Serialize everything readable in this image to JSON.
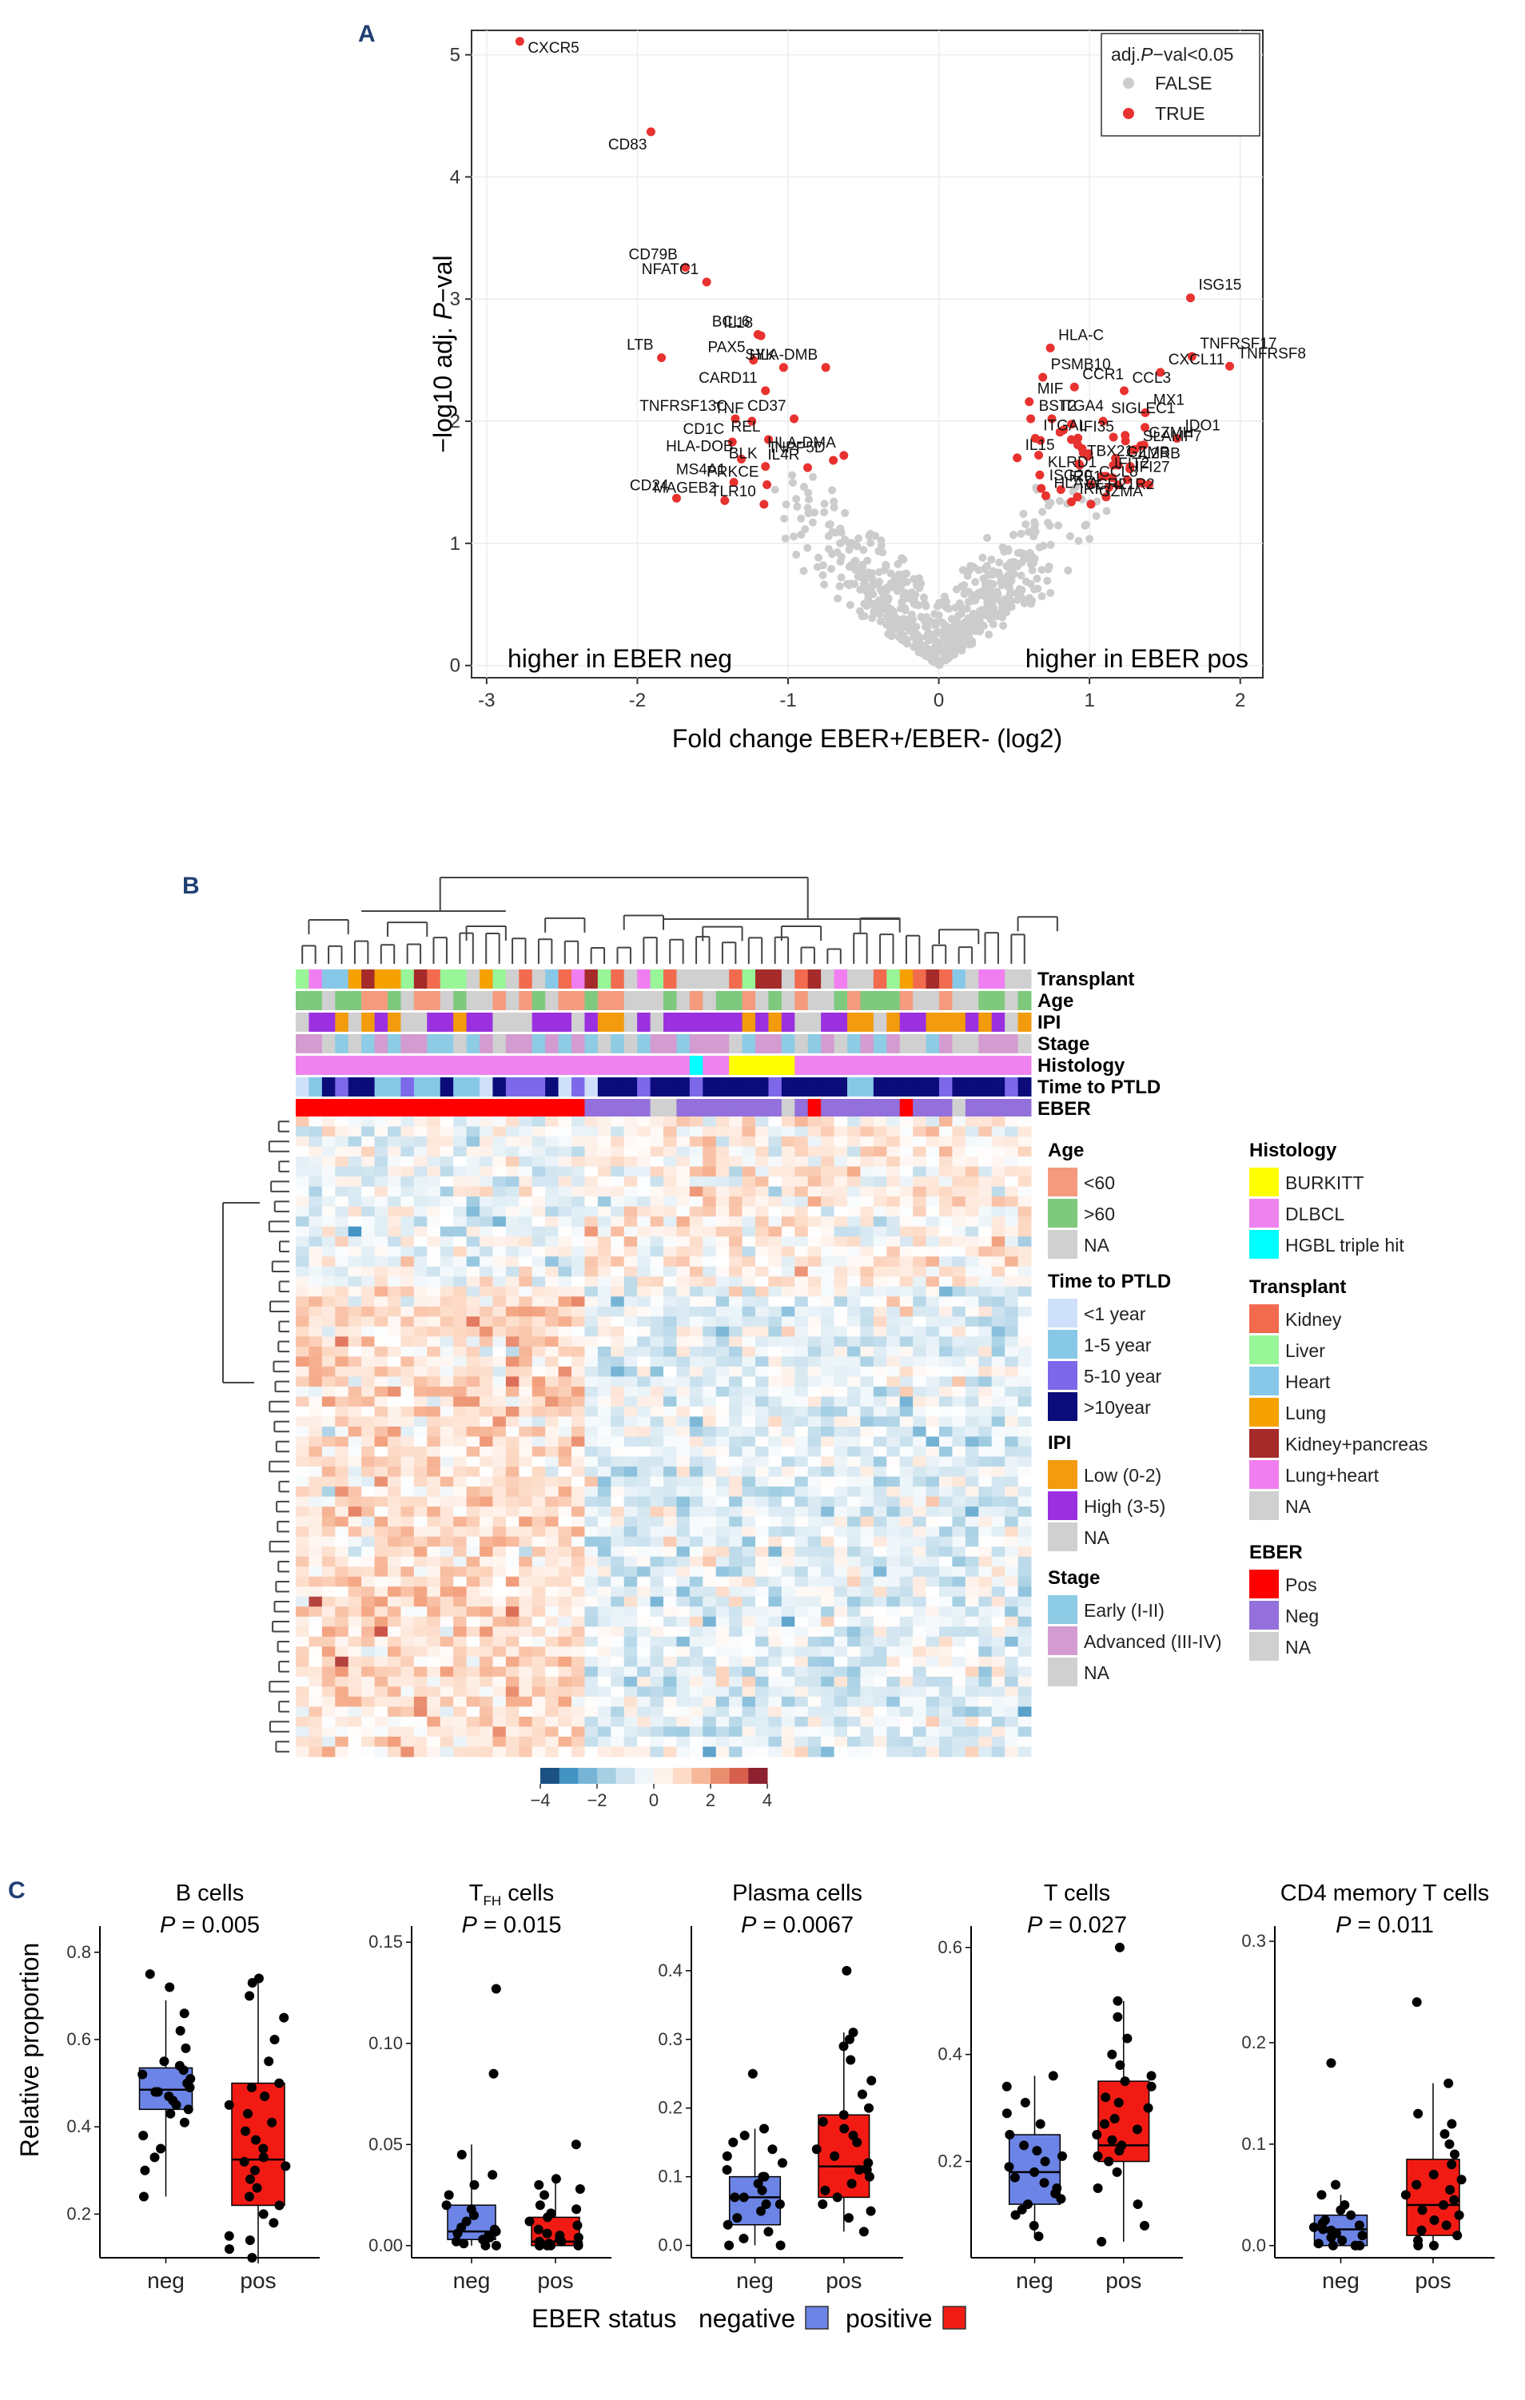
{
  "panel_labels": {
    "a": "A",
    "b": "B",
    "c": "C"
  },
  "colors": {
    "sig": "#e8322f",
    "nonsig": "#cccccc",
    "neg_box": "#6b84e6",
    "pos_box": "#f21b14",
    "dendro": "#444444"
  },
  "chart_data": [
    {
      "id": "volcano",
      "type": "scatter",
      "title": "",
      "xlabel": "Fold change EBER+/EBER- (log2)",
      "ylabel_prefix": "−log10 adj.",
      "ylabel_p": "P",
      "ylabel_suffix": "−val",
      "xlim": [
        -3.1,
        2.15
      ],
      "ylim": [
        -0.1,
        5.2
      ],
      "xticks": [
        -3,
        -2,
        -1,
        0,
        1,
        2
      ],
      "yticks": [
        0,
        1,
        2,
        3,
        4,
        5
      ],
      "grid": true,
      "legend_title_prefix": "adj.",
      "legend_title_p": "P",
      "legend_title_suffix": "−val<0.05",
      "legend": [
        "FALSE",
        "TRUE"
      ],
      "legend_position": "top-right",
      "annotation_left": "higher in EBER neg",
      "annotation_right": "higher in EBER pos",
      "labeled_points": [
        {
          "gene": "CXCR5",
          "x": -2.78,
          "y": 5.11
        },
        {
          "gene": "CD83",
          "x": -1.91,
          "y": 4.37
        },
        {
          "gene": "CD79B",
          "x": -1.68,
          "y": 3.26
        },
        {
          "gene": "NFATC1",
          "x": -1.54,
          "y": 3.14
        },
        {
          "gene": "BCL6",
          "x": -1.2,
          "y": 2.71
        },
        {
          "gene": "IL18",
          "x": -1.18,
          "y": 2.7
        },
        {
          "gene": "PAX5",
          "x": -1.23,
          "y": 2.5
        },
        {
          "gene": "SYK",
          "x": -1.03,
          "y": 2.44
        },
        {
          "gene": "HLA-DMB",
          "x": -0.75,
          "y": 2.44
        },
        {
          "gene": "LTB",
          "x": -1.84,
          "y": 2.52
        },
        {
          "gene": "CARD11",
          "x": -1.15,
          "y": 2.25
        },
        {
          "gene": "TNFRSF13C",
          "x": -1.35,
          "y": 2.02
        },
        {
          "gene": "TNF",
          "x": -1.24,
          "y": 2.0
        },
        {
          "gene": "CD37",
          "x": -0.96,
          "y": 2.02
        },
        {
          "gene": "CD1C",
          "x": -1.37,
          "y": 1.83
        },
        {
          "gene": "REL",
          "x": -1.13,
          "y": 1.85
        },
        {
          "gene": "HLA-DMA",
          "x": -0.63,
          "y": 1.72
        },
        {
          "gene": "HLA-DOB",
          "x": -1.31,
          "y": 1.69
        },
        {
          "gene": "BLK",
          "x": -1.15,
          "y": 1.63
        },
        {
          "gene": "IL4R",
          "x": -0.87,
          "y": 1.62
        },
        {
          "gene": "INPP5D",
          "x": -0.7,
          "y": 1.68
        },
        {
          "gene": "MS4A1",
          "x": -1.36,
          "y": 1.5
        },
        {
          "gene": "PRKCE",
          "x": -1.14,
          "y": 1.48
        },
        {
          "gene": "CD24",
          "x": -1.74,
          "y": 1.37
        },
        {
          "gene": "MAGEB2",
          "x": -1.42,
          "y": 1.35
        },
        {
          "gene": "TLR10",
          "x": -1.16,
          "y": 1.32
        },
        {
          "gene": "ISG15",
          "x": 1.67,
          "y": 3.01
        },
        {
          "gene": "HLA-C",
          "x": 0.74,
          "y": 2.6
        },
        {
          "gene": "PSMB10",
          "x": 0.69,
          "y": 2.36
        },
        {
          "gene": "TNFRSF17",
          "x": 1.68,
          "y": 2.53
        },
        {
          "gene": "CXCL11",
          "x": 1.47,
          "y": 2.4
        },
        {
          "gene": "TNFRSF8",
          "x": 1.93,
          "y": 2.45
        },
        {
          "gene": "CCR1",
          "x": 0.9,
          "y": 2.28
        },
        {
          "gene": "CCL3",
          "x": 1.23,
          "y": 2.25
        },
        {
          "gene": "MIF",
          "x": 0.6,
          "y": 2.16
        },
        {
          "gene": "MX1",
          "x": 1.37,
          "y": 2.07
        },
        {
          "gene": "BST2",
          "x": 0.61,
          "y": 2.02
        },
        {
          "gene": "ITGA4",
          "x": 0.75,
          "y": 2.02
        },
        {
          "gene": "SIGLEC1",
          "x": 1.09,
          "y": 2.0
        },
        {
          "gene": "IDO1",
          "x": 1.58,
          "y": 1.86
        },
        {
          "gene": "ITGAL",
          "x": 0.64,
          "y": 1.86
        },
        {
          "gene": "IFI35",
          "x": 0.88,
          "y": 1.85
        },
        {
          "gene": "SLAMF7",
          "x": 1.3,
          "y": 1.77
        },
        {
          "gene": "IL15",
          "x": 0.52,
          "y": 1.7
        },
        {
          "gene": "TBX21",
          "x": 0.93,
          "y": 1.65
        },
        {
          "gene": "GZMH",
          "x": 1.34,
          "y": 1.8
        },
        {
          "gene": "KLRD1",
          "x": 0.67,
          "y": 1.56
        },
        {
          "gene": "ISG20",
          "x": 0.68,
          "y": 1.45
        },
        {
          "gene": "IFIT2",
          "x": 1.11,
          "y": 1.55
        },
        {
          "gene": "GZMB",
          "x": 1.19,
          "y": 1.64
        },
        {
          "gene": "IL2RB",
          "x": 1.27,
          "y": 1.63
        },
        {
          "gene": "HLA-A",
          "x": 0.71,
          "y": 1.39
        },
        {
          "gene": "IRF1",
          "x": 0.81,
          "y": 1.44
        },
        {
          "gene": "CCR2",
          "x": 0.92,
          "y": 1.38
        },
        {
          "gene": "IL1R2",
          "x": 1.11,
          "y": 1.38
        },
        {
          "gene": "CCL8",
          "x": 1.01,
          "y": 1.48
        },
        {
          "gene": "IRF7",
          "x": 0.88,
          "y": 1.34
        },
        {
          "gene": "GZMA",
          "x": 1.01,
          "y": 1.32
        },
        {
          "gene": "IFI27",
          "x": 1.25,
          "y": 1.52
        }
      ]
    },
    {
      "id": "heatmap",
      "type": "heatmap",
      "annotation_rows": [
        "Transplant",
        "Age",
        "IPI",
        "Stage",
        "Histology",
        "Time to PTLD",
        "EBER"
      ],
      "colorbar_ticks": [
        -4,
        -2,
        0,
        2,
        4
      ],
      "n_samples": 56,
      "n_genes": 64,
      "legend_groups": [
        {
          "title": "Age",
          "items": [
            {
              "label": "<60",
              "color": "#f59a7c"
            },
            {
              "label": ">60",
              "color": "#7ec97e"
            },
            {
              "label": "NA",
              "color": "#d0d0d0"
            }
          ]
        },
        {
          "title": "Time to PTLD",
          "items": [
            {
              "label": "<1 year",
              "color": "#cfe0fa"
            },
            {
              "label": "1-5 year",
              "color": "#86c8e6"
            },
            {
              "label": "5-10 year",
              "color": "#7d68ea"
            },
            {
              "label": ">10year",
              "color": "#0b0b7a"
            }
          ]
        },
        {
          "title": "IPI",
          "items": [
            {
              "label": "Low (0-2)",
              "color": "#f29b0c"
            },
            {
              "label": "High (3-5)",
              "color": "#9b30e0"
            },
            {
              "label": "NA",
              "color": "#d0d0d0"
            }
          ]
        },
        {
          "title": "Stage",
          "items": [
            {
              "label": "Early (I-II)",
              "color": "#8ecbe4"
            },
            {
              "label": "Advanced (III-IV)",
              "color": "#d39bd0"
            },
            {
              "label": "NA",
              "color": "#d0d0d0"
            }
          ]
        },
        {
          "title": "Histology",
          "items": [
            {
              "label": "BURKITT",
              "color": "#ffff00"
            },
            {
              "label": "DLBCL",
              "color": "#ee82ee"
            },
            {
              "label": "HGBL triple hit",
              "color": "#00ffff"
            }
          ]
        },
        {
          "title": "Transplant",
          "items": [
            {
              "label": "Kidney",
              "color": "#f26b4f"
            },
            {
              "label": "Liver",
              "color": "#98f598"
            },
            {
              "label": "Heart",
              "color": "#87c8e8"
            },
            {
              "label": "Lung",
              "color": "#f5a100"
            },
            {
              "label": "Kidney+pancreas",
              "color": "#a52a2a"
            },
            {
              "label": "Lung+heart",
              "color": "#f07ef0"
            },
            {
              "label": "NA",
              "color": "#d0d0d0"
            }
          ]
        },
        {
          "title": "EBER",
          "items": [
            {
              "label": "Pos",
              "color": "#ff0000"
            },
            {
              "label": "Neg",
              "color": "#9370db"
            },
            {
              "label": "NA",
              "color": "#d0d0d0"
            }
          ]
        }
      ]
    },
    {
      "id": "boxplots",
      "type": "box",
      "ylabel": "Relative proportion",
      "categories": [
        "neg",
        "pos"
      ],
      "legend_title": "EBER status",
      "legend": [
        "negative",
        "positive"
      ],
      "panels": [
        {
          "title": "B cells",
          "title_sub": "",
          "title_rest": "",
          "p_label": "P",
          "p_value": "= 0.005",
          "ylim": [
            0.1,
            0.86
          ],
          "yticks": [
            "0.2",
            "0.4",
            "0.6",
            "0.8"
          ],
          "neg": {
            "min": 0.24,
            "q1": 0.44,
            "median": 0.485,
            "q3": 0.535,
            "max": 0.69
          },
          "pos": {
            "min": 0.1,
            "q1": 0.22,
            "median": 0.325,
            "q3": 0.5,
            "max": 0.74
          },
          "neg_points": [
            0.24,
            0.3,
            0.33,
            0.35,
            0.38,
            0.41,
            0.43,
            0.44,
            0.45,
            0.46,
            0.47,
            0.48,
            0.48,
            0.49,
            0.5,
            0.51,
            0.52,
            0.53,
            0.54,
            0.55,
            0.58,
            0.62,
            0.66,
            0.72,
            0.75
          ],
          "pos_points": [
            0.1,
            0.12,
            0.14,
            0.15,
            0.18,
            0.2,
            0.22,
            0.24,
            0.26,
            0.28,
            0.3,
            0.31,
            0.32,
            0.33,
            0.35,
            0.37,
            0.39,
            0.41,
            0.43,
            0.45,
            0.47,
            0.49,
            0.5,
            0.55,
            0.6,
            0.65,
            0.7,
            0.73,
            0.74
          ]
        },
        {
          "title": "T",
          "title_sub": "FH",
          "title_rest": " cells",
          "p_label": "P",
          "p_value": "= 0.015",
          "ylim": [
            -0.006,
            0.158
          ],
          "yticks": [
            "0.00",
            "0.05",
            "0.10",
            "0.15"
          ],
          "neg": {
            "min": 0.0,
            "q1": 0.003,
            "median": 0.007,
            "q3": 0.02,
            "max": 0.05
          },
          "pos": {
            "min": 0.0,
            "q1": 0.0,
            "median": 0.002,
            "q3": 0.014,
            "max": 0.035
          },
          "neg_points": [
            0.0,
            0.0,
            0.001,
            0.002,
            0.003,
            0.004,
            0.005,
            0.006,
            0.007,
            0.008,
            0.009,
            0.012,
            0.015,
            0.018,
            0.02,
            0.025,
            0.03,
            0.035,
            0.045,
            0.085,
            0.127
          ],
          "pos_points": [
            0.0,
            0.0,
            0.0,
            0.0,
            0.0,
            0.001,
            0.001,
            0.002,
            0.002,
            0.003,
            0.004,
            0.005,
            0.006,
            0.008,
            0.01,
            0.012,
            0.014,
            0.016,
            0.018,
            0.02,
            0.025,
            0.028,
            0.03,
            0.033,
            0.05
          ]
        },
        {
          "title": "Plasma cells",
          "title_sub": "",
          "title_rest": "",
          "p_label": "P",
          "p_value": "= 0.0067",
          "ylim": [
            -0.018,
            0.465
          ],
          "yticks": [
            "0.0",
            "0.1",
            "0.2",
            "0.3",
            "0.4"
          ],
          "neg": {
            "min": 0.0,
            "q1": 0.03,
            "median": 0.07,
            "q3": 0.1,
            "max": 0.17
          },
          "pos": {
            "min": 0.02,
            "q1": 0.07,
            "median": 0.115,
            "q3": 0.19,
            "max": 0.31
          },
          "neg_points": [
            0.0,
            0.0,
            0.01,
            0.02,
            0.03,
            0.04,
            0.05,
            0.06,
            0.06,
            0.07,
            0.07,
            0.08,
            0.09,
            0.1,
            0.1,
            0.11,
            0.12,
            0.13,
            0.14,
            0.15,
            0.16,
            0.17,
            0.25
          ],
          "pos_points": [
            0.02,
            0.04,
            0.05,
            0.06,
            0.07,
            0.08,
            0.09,
            0.1,
            0.11,
            0.11,
            0.12,
            0.13,
            0.14,
            0.15,
            0.16,
            0.17,
            0.18,
            0.19,
            0.2,
            0.22,
            0.24,
            0.27,
            0.29,
            0.3,
            0.31,
            0.4
          ]
        },
        {
          "title": "T cells",
          "title_sub": "",
          "title_rest": "",
          "p_label": "P",
          "p_value": "= 0.027",
          "ylim": [
            0.02,
            0.64
          ],
          "yticks": [
            "0.2",
            "0.4",
            "0.6"
          ],
          "neg": {
            "min": 0.06,
            "q1": 0.12,
            "median": 0.18,
            "q3": 0.25,
            "max": 0.36
          },
          "pos": {
            "min": 0.05,
            "q1": 0.2,
            "median": 0.23,
            "q3": 0.35,
            "max": 0.5
          },
          "neg_points": [
            0.06,
            0.08,
            0.1,
            0.11,
            0.12,
            0.13,
            0.14,
            0.15,
            0.16,
            0.17,
            0.18,
            0.19,
            0.2,
            0.21,
            0.22,
            0.23,
            0.25,
            0.27,
            0.29,
            0.31,
            0.34,
            0.36
          ],
          "pos_points": [
            0.05,
            0.08,
            0.12,
            0.15,
            0.18,
            0.2,
            0.21,
            0.22,
            0.23,
            0.24,
            0.25,
            0.26,
            0.27,
            0.28,
            0.3,
            0.31,
            0.32,
            0.34,
            0.35,
            0.36,
            0.38,
            0.4,
            0.43,
            0.47,
            0.5,
            0.6
          ]
        },
        {
          "title": "CD4 memory T cells",
          "title_sub": "",
          "title_rest": "",
          "p_label": "P",
          "p_value": "= 0.011",
          "ylim": [
            -0.012,
            0.315
          ],
          "yticks": [
            "0.0",
            "0.1",
            "0.2",
            "0.3"
          ],
          "neg": {
            "min": 0.0,
            "q1": 0.0,
            "median": 0.016,
            "q3": 0.03,
            "max": 0.05
          },
          "pos": {
            "min": 0.0,
            "q1": 0.01,
            "median": 0.04,
            "q3": 0.085,
            "max": 0.16
          },
          "neg_points": [
            0.0,
            0.0,
            0.0,
            0.0,
            0.002,
            0.005,
            0.008,
            0.01,
            0.012,
            0.015,
            0.016,
            0.018,
            0.02,
            0.022,
            0.025,
            0.03,
            0.035,
            0.04,
            0.05,
            0.06,
            0.18
          ],
          "pos_points": [
            0.0,
            0.0,
            0.005,
            0.01,
            0.015,
            0.02,
            0.025,
            0.03,
            0.035,
            0.04,
            0.045,
            0.05,
            0.055,
            0.06,
            0.065,
            0.07,
            0.08,
            0.09,
            0.1,
            0.11,
            0.12,
            0.13,
            0.16,
            0.24
          ]
        }
      ]
    }
  ]
}
